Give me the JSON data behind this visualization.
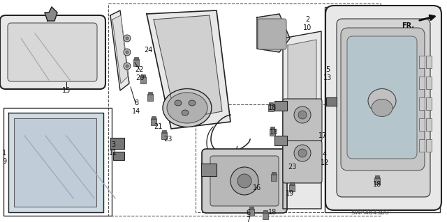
{
  "bg_color": "#ffffff",
  "line_color": "#222222",
  "fill_light": "#e8e8e8",
  "fill_mid": "#cccccc",
  "fill_dark": "#aaaaaa",
  "diagram_code": "SWA4B4300",
  "figsize": [
    6.4,
    3.19
  ],
  "dpi": 100
}
